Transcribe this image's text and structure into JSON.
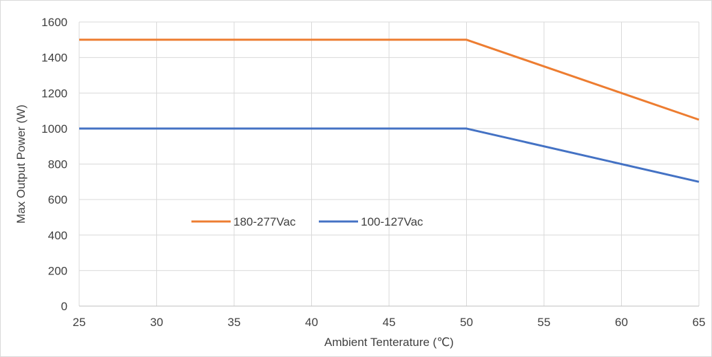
{
  "chart_data": {
    "type": "line",
    "xlabel": "Ambient Tenterature (℃)",
    "ylabel": "Max Output Power (W)",
    "xlim": [
      25,
      65
    ],
    "ylim": [
      0,
      1600
    ],
    "x_ticks": [
      25,
      30,
      35,
      40,
      45,
      50,
      55,
      60,
      65
    ],
    "y_ticks": [
      0,
      200,
      400,
      600,
      800,
      1000,
      1200,
      1400,
      1600
    ],
    "x_tick_labels": [
      "25",
      "30",
      "35",
      "40",
      "45",
      "50",
      "55",
      "60",
      "65"
    ],
    "y_tick_labels": [
      "0",
      "200",
      "400",
      "600",
      "800",
      "1000",
      "1200",
      "1400",
      "1600"
    ],
    "grid": true,
    "legend_position": "center-left, inside plot",
    "series": [
      {
        "name": "180-277Vac",
        "color": "#ed7d31",
        "x": [
          25,
          50,
          65
        ],
        "y": [
          1500,
          1500,
          1050
        ]
      },
      {
        "name": "100-127Vac",
        "color": "#4472c4",
        "x": [
          25,
          50,
          65
        ],
        "y": [
          1000,
          1000,
          700
        ]
      }
    ],
    "gridline_color": "#d9d9d9",
    "axis_line_color": "#bfbfbf",
    "text_color": "#404040"
  }
}
